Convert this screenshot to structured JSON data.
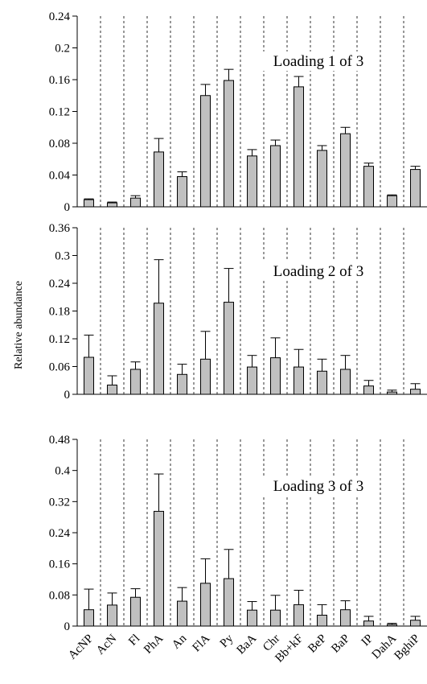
{
  "chart_data": {
    "type": "bar",
    "ylabel": "Relative abundance",
    "categories": [
      "AcNP",
      "AcN",
      "Fl",
      "PhA",
      "An",
      "FlA",
      "Py",
      "BaA",
      "Chr",
      "Bb+kF",
      "BeP",
      "BaP",
      "IP",
      "DahA",
      "BghiP"
    ],
    "panels": [
      {
        "title": "Loading 1 of 3",
        "ylim": [
          0,
          0.24
        ],
        "yticks": [
          "0",
          "0.04",
          "0.08",
          "0.12",
          "0.16",
          "0.2",
          "0.24"
        ],
        "values": [
          0.009,
          0.005,
          0.011,
          0.069,
          0.038,
          0.14,
          0.159,
          0.064,
          0.077,
          0.151,
          0.071,
          0.092,
          0.051,
          0.014,
          0.047
        ],
        "errors": [
          0.001,
          0.001,
          0.003,
          0.017,
          0.006,
          0.014,
          0.014,
          0.008,
          0.007,
          0.013,
          0.006,
          0.008,
          0.004,
          0.001,
          0.004
        ]
      },
      {
        "title": "Loading 2 of 3",
        "ylim": [
          0,
          0.36
        ],
        "yticks": [
          "0",
          "0.06",
          "0.12",
          "0.18",
          "0.24",
          "0.3",
          "0.36"
        ],
        "values": [
          0.08,
          0.02,
          0.054,
          0.197,
          0.043,
          0.076,
          0.199,
          0.059,
          0.079,
          0.059,
          0.05,
          0.054,
          0.018,
          0.005,
          0.011
        ],
        "errors": [
          0.048,
          0.02,
          0.016,
          0.094,
          0.022,
          0.06,
          0.073,
          0.025,
          0.043,
          0.038,
          0.026,
          0.03,
          0.012,
          0.004,
          0.012
        ]
      },
      {
        "title": "Loading 3 of 3",
        "ylim": [
          0,
          0.48
        ],
        "yticks": [
          "0",
          "0.08",
          "0.16",
          "0.24",
          "0.32",
          "0.4",
          "0.48"
        ],
        "values": [
          0.042,
          0.054,
          0.074,
          0.295,
          0.064,
          0.11,
          0.122,
          0.041,
          0.041,
          0.055,
          0.028,
          0.042,
          0.013,
          0.004,
          0.015
        ],
        "errors": [
          0.053,
          0.031,
          0.022,
          0.096,
          0.035,
          0.063,
          0.075,
          0.022,
          0.038,
          0.037,
          0.027,
          0.023,
          0.012,
          0.003,
          0.01
        ]
      }
    ],
    "bar_color": "#c0c0c0",
    "grid": "vertical dashed separators",
    "legend": "none"
  }
}
